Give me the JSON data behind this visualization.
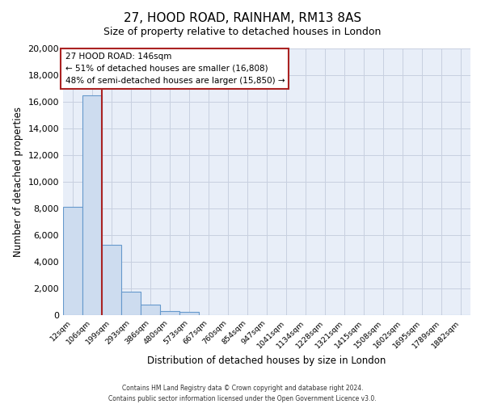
{
  "title": "27, HOOD ROAD, RAINHAM, RM13 8AS",
  "subtitle": "Size of property relative to detached houses in London",
  "xlabel": "Distribution of detached houses by size in London",
  "ylabel": "Number of detached properties",
  "bar_color": "#cddcef",
  "bar_edge_color": "#6699cc",
  "bar_categories": [
    "12sqm",
    "106sqm",
    "199sqm",
    "293sqm",
    "386sqm",
    "480sqm",
    "573sqm",
    "667sqm",
    "760sqm",
    "854sqm",
    "947sqm",
    "1041sqm",
    "1134sqm",
    "1228sqm",
    "1321sqm",
    "1415sqm",
    "1508sqm",
    "1602sqm",
    "1695sqm",
    "1789sqm",
    "1882sqm"
  ],
  "bar_values": [
    8100,
    16500,
    5300,
    1750,
    800,
    280,
    260,
    0,
    0,
    0,
    0,
    0,
    0,
    0,
    0,
    0,
    0,
    0,
    0,
    0,
    0
  ],
  "ylim": [
    0,
    20000
  ],
  "yticks": [
    0,
    2000,
    4000,
    6000,
    8000,
    10000,
    12000,
    14000,
    16000,
    18000,
    20000
  ],
  "property_line_x": 1.5,
  "property_line_color": "#aa2222",
  "annotation_title": "27 HOOD ROAD: 146sqm",
  "annotation_line1": "← 51% of detached houses are smaller (16,808)",
  "annotation_line2": "48% of semi-detached houses are larger (15,850) →",
  "annotation_box_facecolor": "#ffffff",
  "annotation_box_edgecolor": "#aa2222",
  "footer_line1": "Contains HM Land Registry data © Crown copyright and database right 2024.",
  "footer_line2": "Contains public sector information licensed under the Open Government Licence v3.0.",
  "background_color": "#ffffff",
  "plot_bg_color": "#e8eef8",
  "grid_color": "#c8d0e0"
}
